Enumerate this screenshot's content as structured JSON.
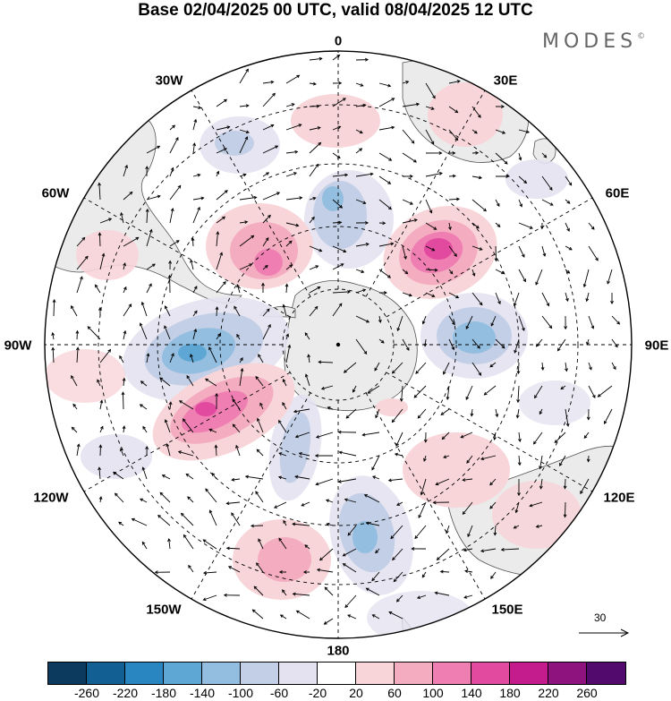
{
  "title": "Base 02/04/2025 00 UTC, valid 08/04/2025 12 UTC",
  "brand": "MODES",
  "brand_mark": "©",
  "longitude_labels": {
    "lon_0": "0",
    "lon_30E": "30E",
    "lon_60E": "60E",
    "lon_90E": "90E",
    "lon_120E": "120E",
    "lon_150E": "150E",
    "lon_180": "180",
    "lon_150W": "150W",
    "lon_120W": "120W",
    "lon_90W": "90W",
    "lon_60W": "60W",
    "lon_30W": "30W"
  },
  "reference_vector": "30",
  "colorbar": {
    "colors": [
      "#0b3a5e",
      "#115f93",
      "#2a86c0",
      "#5ea7d5",
      "#93bee0",
      "#c3cfe6",
      "#e4e2f0",
      "#ffffff",
      "#f8d5d9",
      "#f4adc0",
      "#ef7fb2",
      "#e24a9f",
      "#c41c8d",
      "#8e137e",
      "#520a6c"
    ],
    "labels": [
      "-260",
      "-220",
      "-180",
      "-140",
      "-100",
      "-60",
      "-20",
      "20",
      "60",
      "100",
      "140",
      "180",
      "220",
      "260"
    ]
  },
  "projection": "south polar stereographic",
  "colors": {
    "land": "#ebebeb",
    "coastline": "#555555",
    "graticule": "#000000",
    "vectors": "#000000"
  }
}
